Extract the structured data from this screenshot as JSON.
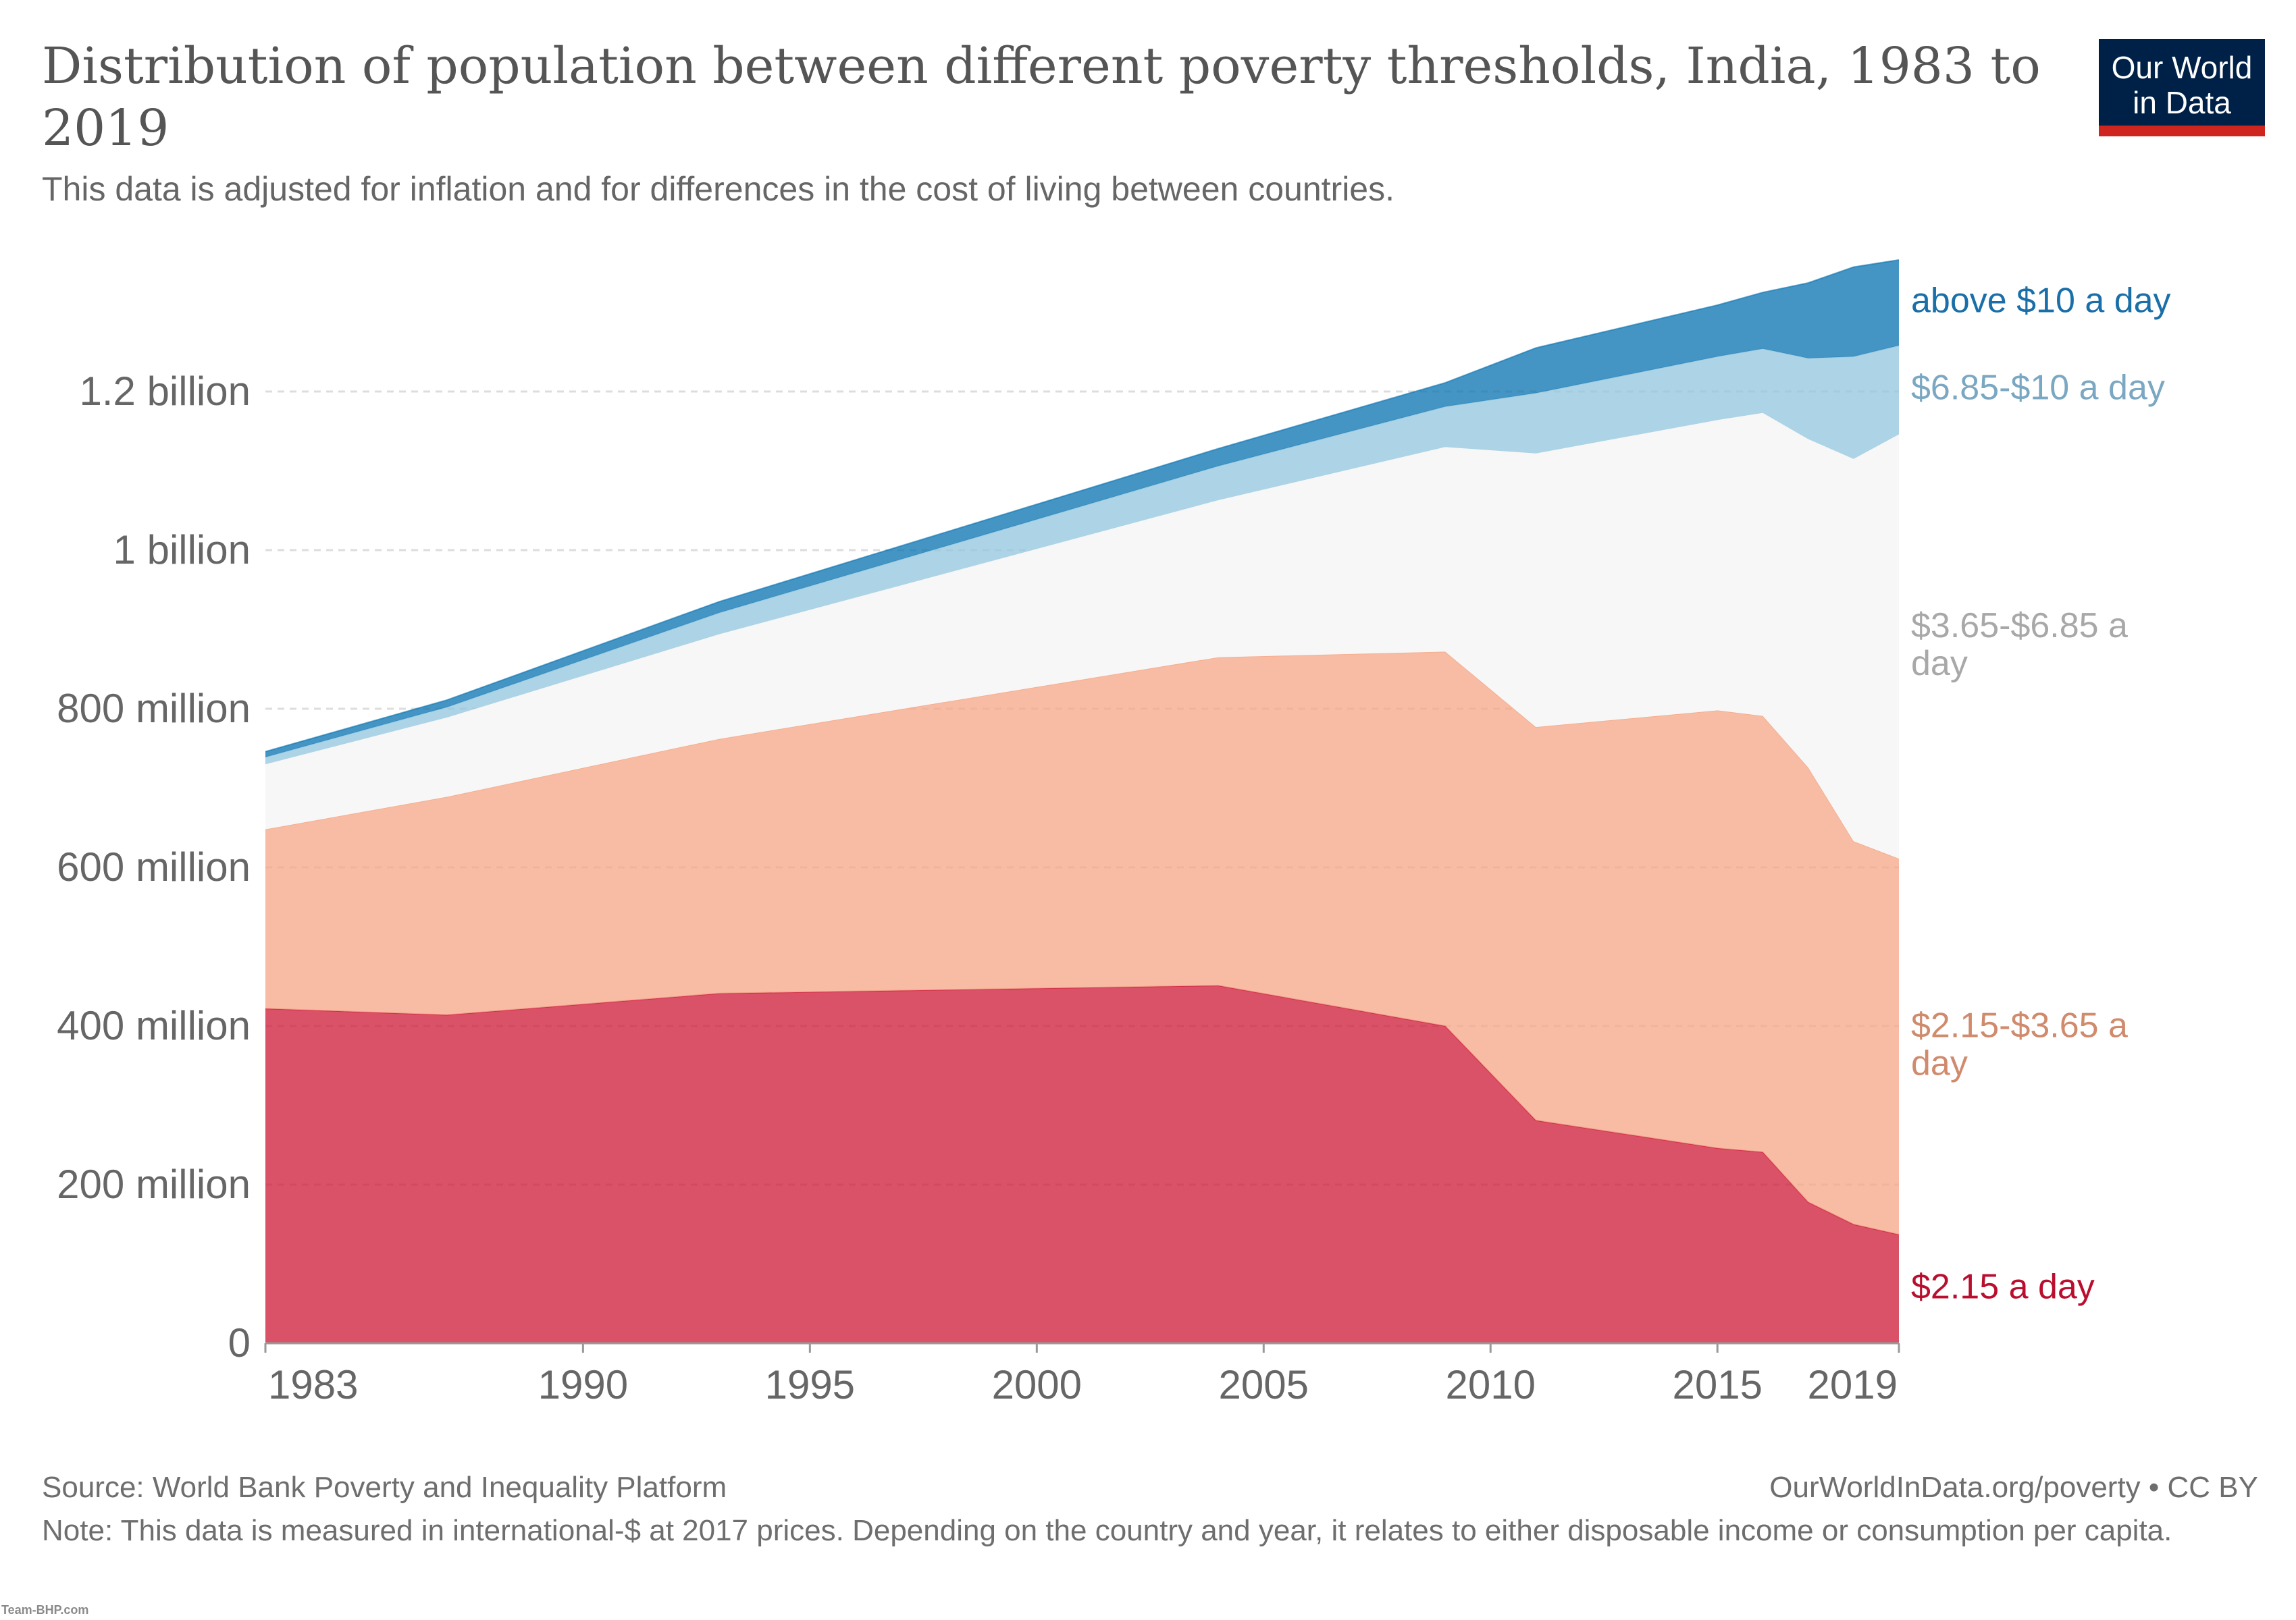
{
  "header": {
    "title": "Distribution of population between different poverty thresholds, India, 1983 to 2019",
    "subtitle": "This data is adjusted for inflation and for differences in the cost of living between countries."
  },
  "logo": {
    "text": "Our World\nin Data",
    "bg_color": "#002147",
    "bar_color": "#ce261e"
  },
  "footer": {
    "source": "Source: World Bank Poverty and Inequality Platform",
    "credit": "OurWorldInData.org/poverty • CC BY",
    "note": "Note: This data is measured in international-$ at 2017 prices. Depending on the country and year, it relates to either disposable income or consumption per capita."
  },
  "watermark": "Team-BHP.com",
  "chart_data": {
    "type": "area",
    "stacked": true,
    "title": "Distribution of population between different poverty thresholds, India, 1983 to 2019",
    "x_ticks": [
      "1983",
      "1990",
      "1995",
      "2000",
      "2005",
      "2010",
      "2015",
      "2019"
    ],
    "y_ticks": [
      "0",
      "200 million",
      "400 million",
      "600 million",
      "800 million",
      "1 billion",
      "1.2 billion"
    ],
    "xlim": [
      1983,
      2019
    ],
    "ylim": [
      0,
      1366000000
    ],
    "grid": "horizontal dashed",
    "legend": "right, labels at series ends",
    "x": [
      1983,
      1987,
      1993,
      2004,
      2009,
      2011,
      2015,
      2016,
      2017,
      2018,
      2019
    ],
    "series": [
      {
        "name": "$2.15 a day",
        "color": "#ce1836",
        "label_color": "#ba0e2e",
        "values": [
          422000000,
          414000000,
          441000000,
          451000000,
          400000000,
          281000000,
          246000000,
          241000000,
          178000000,
          150000000,
          137000000
        ]
      },
      {
        "name": "$2.15-$3.65 a day",
        "color": "#f4a584",
        "label_color": "#d08a6c",
        "values": [
          226000000,
          275000000,
          321000000,
          414000000,
          472000000,
          496000000,
          552000000,
          550000000,
          548000000,
          483000000,
          474000000
        ]
      },
      {
        "name": "$3.65-$6.85 a day",
        "color": "#f7f7f7",
        "label_color": "#a8a8a8",
        "values": [
          82000000,
          100000000,
          132000000,
          198000000,
          258000000,
          345000000,
          366000000,
          382000000,
          414000000,
          482000000,
          535000000
        ]
      },
      {
        "name": "$6.85-$10 a day",
        "color": "#92c5de",
        "label_color": "#7aa7c2",
        "values": [
          9000000,
          13000000,
          27000000,
          43000000,
          51000000,
          76000000,
          80000000,
          81000000,
          102000000,
          129000000,
          112000000
        ]
      },
      {
        "name": "above $10 a day",
        "color": "#0571b0",
        "label_color": "#1a6fa8",
        "values": [
          7000000,
          9000000,
          14000000,
          22000000,
          30000000,
          57000000,
          65000000,
          71000000,
          95000000,
          113000000,
          108000000
        ]
      }
    ]
  }
}
